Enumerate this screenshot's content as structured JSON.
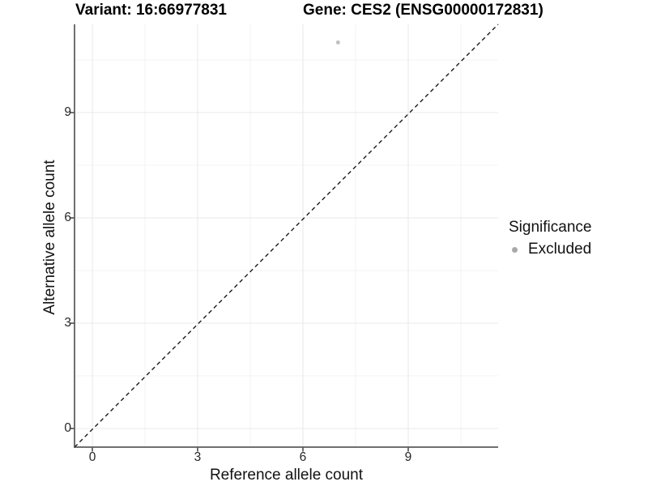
{
  "header": {
    "title_left": "Variant: 16:66977831",
    "title_right": "Gene: CES2 (ENSG00000172831)"
  },
  "chart_data": {
    "type": "scatter",
    "titles": [
      "Variant: 16:66977831",
      "Gene: CES2 (ENSG00000172831)"
    ],
    "xlabel": "Reference allele count",
    "ylabel": "Alternative allele count",
    "xlim": [
      -0.51,
      11.56
    ],
    "ylim": [
      -0.53,
      11.53
    ],
    "xticks": [
      0,
      3,
      6,
      9
    ],
    "yticks": [
      0,
      3,
      6,
      9
    ],
    "minor_gridlines": [
      1.5,
      4.5,
      7.5,
      10.5
    ],
    "grid": "major and minor, light gray, on white panel",
    "reference_line": {
      "equation": "y = x",
      "style": "dashed",
      "color": "#1a1a1a"
    },
    "series": [
      {
        "name": "Excluded",
        "color": "#c0c0c0",
        "points": [
          {
            "x": 7,
            "y": 11
          }
        ]
      }
    ],
    "legend": {
      "title": "Significance",
      "position": "right",
      "items": [
        {
          "label": "Excluded",
          "marker": "circle",
          "color": "#a9a9a9"
        }
      ]
    }
  },
  "colors": {
    "background": "#ffffff",
    "axis_line": "#404040",
    "tick_mark": "#404040",
    "tick_label": "#262626",
    "grid_major": "#e8e8e8",
    "grid_minor": "#f3f3f3",
    "identity_line": "#1a1a1a",
    "point": "#c0c0c0",
    "legend_key": "#a9a9a9"
  }
}
